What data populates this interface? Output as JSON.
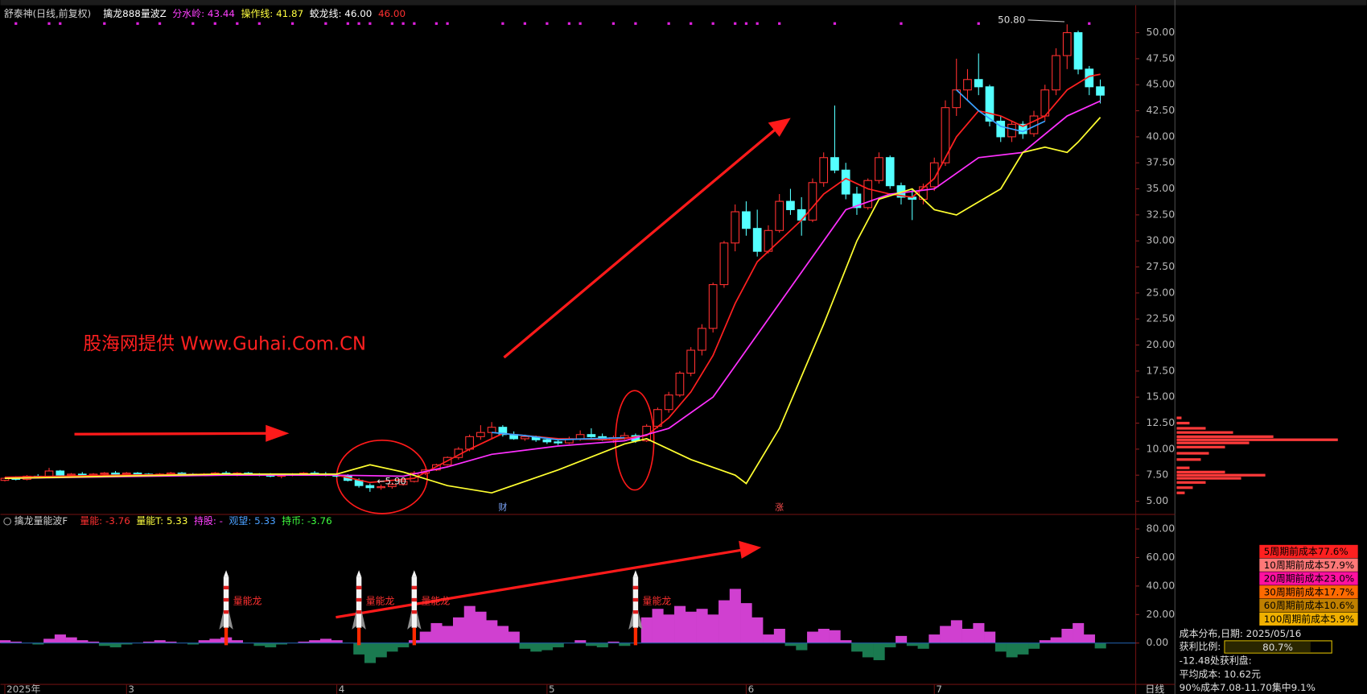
{
  "chart_data": [
    {
      "type": "candlestick",
      "header": [
        {
          "text": "舒泰神(日线,前复权)",
          "color": "#d0d0d0"
        },
        {
          "text": "擒龙888量波Z",
          "color": "#ffffff"
        },
        {
          "text": "分水岭: 43.44",
          "color": "#ff40ff"
        },
        {
          "text": "操作线: 41.87",
          "color": "#ffff40"
        },
        {
          "text": "蛟龙线: 46.00",
          "color": "#ffffff"
        },
        {
          "text": "46.00",
          "color": "#ff3030"
        }
      ],
      "watermark": "股海网提供 Www.Guhai.Com.CN",
      "up_color": "#ff3030",
      "down_color": "#54ffff",
      "xlim": [
        -0.4,
        102.2
      ],
      "xticks": [
        {
          "value": 0,
          "label": "2025年"
        },
        {
          "value": 11,
          "label": "3"
        },
        {
          "value": 30,
          "label": "4"
        },
        {
          "value": 49,
          "label": "5"
        },
        {
          "value": 67,
          "label": "6"
        },
        {
          "value": 84,
          "label": "7"
        }
      ],
      "ylim": [
        3.9,
        52.3
      ],
      "yticks": [
        {
          "value": 5,
          "label": "5.00"
        },
        {
          "value": 7.5,
          "label": "7.50"
        },
        {
          "value": 10,
          "label": "10.00"
        },
        {
          "value": 12.5,
          "label": "12.50"
        },
        {
          "value": 15,
          "label": "15.00"
        },
        {
          "value": 17.5,
          "label": "17.50"
        },
        {
          "value": 20,
          "label": "20.00"
        },
        {
          "value": 22.5,
          "label": "22.50"
        },
        {
          "value": 25,
          "label": "25.00"
        },
        {
          "value": 27.5,
          "label": "27.50"
        },
        {
          "value": 30,
          "label": "30.00"
        },
        {
          "value": 32.5,
          "label": "32.50"
        },
        {
          "value": 35,
          "label": "35.00"
        },
        {
          "value": 37.5,
          "label": "37.50"
        },
        {
          "value": 40,
          "label": "40.00"
        },
        {
          "value": 42.5,
          "label": "42.50"
        },
        {
          "value": 45,
          "label": "45.00"
        },
        {
          "value": 47.5,
          "label": "47.50"
        },
        {
          "value": 50,
          "label": "50.00"
        }
      ],
      "ohlc": [
        [
          7.0,
          7.3,
          6.9,
          7.2
        ],
        [
          7.2,
          7.4,
          7.0,
          7.1
        ],
        [
          7.1,
          7.5,
          7.0,
          7.4
        ],
        [
          7.4,
          7.6,
          7.2,
          7.3
        ],
        [
          7.3,
          8.2,
          7.2,
          7.9
        ],
        [
          7.9,
          8.0,
          7.4,
          7.5
        ],
        [
          7.5,
          7.7,
          7.3,
          7.6
        ],
        [
          7.6,
          7.8,
          7.4,
          7.5
        ],
        [
          7.5,
          7.7,
          7.3,
          7.6
        ],
        [
          7.6,
          7.8,
          7.4,
          7.7
        ],
        [
          7.7,
          7.9,
          7.5,
          7.6
        ],
        [
          7.6,
          7.8,
          7.4,
          7.7
        ],
        [
          7.7,
          7.8,
          7.5,
          7.6
        ],
        [
          7.6,
          7.7,
          7.4,
          7.5
        ],
        [
          7.5,
          7.7,
          7.4,
          7.6
        ],
        [
          7.6,
          7.8,
          7.5,
          7.7
        ],
        [
          7.7,
          7.8,
          7.5,
          7.6
        ],
        [
          7.6,
          7.7,
          7.4,
          7.5
        ],
        [
          7.5,
          7.7,
          7.4,
          7.6
        ],
        [
          7.6,
          7.8,
          7.5,
          7.7
        ],
        [
          7.7,
          7.9,
          7.5,
          7.6
        ],
        [
          7.6,
          7.8,
          7.4,
          7.7
        ],
        [
          7.7,
          7.8,
          7.5,
          7.6
        ],
        [
          7.6,
          7.7,
          7.4,
          7.5
        ],
        [
          7.5,
          7.7,
          7.3,
          7.4
        ],
        [
          7.4,
          7.6,
          7.2,
          7.5
        ],
        [
          7.5,
          7.7,
          7.4,
          7.6
        ],
        [
          7.6,
          7.8,
          7.5,
          7.7
        ],
        [
          7.7,
          7.9,
          7.5,
          7.6
        ],
        [
          7.6,
          7.8,
          7.4,
          7.5
        ],
        [
          7.5,
          7.7,
          7.3,
          7.4
        ],
        [
          7.4,
          7.6,
          6.9,
          7.0
        ],
        [
          7.0,
          7.2,
          6.3,
          6.5
        ],
        [
          6.5,
          6.7,
          5.9,
          6.3
        ],
        [
          6.3,
          6.6,
          6.1,
          6.4
        ],
        [
          6.4,
          6.8,
          6.2,
          6.6
        ],
        [
          6.6,
          7.0,
          6.5,
          6.9
        ],
        [
          6.9,
          7.9,
          6.8,
          7.7
        ],
        [
          7.7,
          8.1,
          7.5,
          8.0
        ],
        [
          8.0,
          8.6,
          7.9,
          8.5
        ],
        [
          8.5,
          9.3,
          8.4,
          9.2
        ],
        [
          9.2,
          10.2,
          9.0,
          10.0
        ],
        [
          10.0,
          11.4,
          9.8,
          11.2
        ],
        [
          11.2,
          12.3,
          10.9,
          11.6
        ],
        [
          11.6,
          12.6,
          11.0,
          12.1
        ],
        [
          12.1,
          12.3,
          11.2,
          11.4
        ],
        [
          11.4,
          11.7,
          10.9,
          11.0
        ],
        [
          11.0,
          11.4,
          10.8,
          11.2
        ],
        [
          11.2,
          11.3,
          10.7,
          10.9
        ],
        [
          10.9,
          11.1,
          10.5,
          10.7
        ],
        [
          10.7,
          11.0,
          10.4,
          10.6
        ],
        [
          10.6,
          11.2,
          10.5,
          11.0
        ],
        [
          11.0,
          11.8,
          10.8,
          11.4
        ],
        [
          11.4,
          12.0,
          11.1,
          11.2
        ],
        [
          11.2,
          11.5,
          10.8,
          10.9
        ],
        [
          10.9,
          11.3,
          10.6,
          11.1
        ],
        [
          11.1,
          11.6,
          10.9,
          11.3
        ],
        [
          11.3,
          11.5,
          10.6,
          10.8
        ],
        [
          10.8,
          12.4,
          10.7,
          12.2
        ],
        [
          12.2,
          14.0,
          12.0,
          13.8
        ],
        [
          13.8,
          15.5,
          13.5,
          15.2
        ],
        [
          15.2,
          17.5,
          15.0,
          17.3
        ],
        [
          17.3,
          19.8,
          17.0,
          19.5
        ],
        [
          19.5,
          22.0,
          19.0,
          21.6
        ],
        [
          21.6,
          26.0,
          21.2,
          25.8
        ],
        [
          25.8,
          30.0,
          25.5,
          29.8
        ],
        [
          29.8,
          33.5,
          29.0,
          32.8
        ],
        [
          32.8,
          33.8,
          30.5,
          31.2
        ],
        [
          31.2,
          33.0,
          28.5,
          29.0
        ],
        [
          29.0,
          31.5,
          28.8,
          31.0
        ],
        [
          31.0,
          34.5,
          30.8,
          33.8
        ],
        [
          33.8,
          35.0,
          32.5,
          33.0
        ],
        [
          33.0,
          34.2,
          30.5,
          32.0
        ],
        [
          32.0,
          36.0,
          31.8,
          35.6
        ],
        [
          35.6,
          38.5,
          35.2,
          38.0
        ],
        [
          38.0,
          43.0,
          36.5,
          36.8
        ],
        [
          36.8,
          37.5,
          34.0,
          34.5
        ],
        [
          34.5,
          35.2,
          32.5,
          33.2
        ],
        [
          33.2,
          36.0,
          33.0,
          35.8
        ],
        [
          35.8,
          38.5,
          35.5,
          38.0
        ],
        [
          38.0,
          38.2,
          35.0,
          35.3
        ],
        [
          35.3,
          35.6,
          33.5,
          34.2
        ],
        [
          34.2,
          35.0,
          32.0,
          34.0
        ],
        [
          34.0,
          35.5,
          33.5,
          35.2
        ],
        [
          35.2,
          38.0,
          34.8,
          37.5
        ],
        [
          37.5,
          43.5,
          37.2,
          42.8
        ],
        [
          42.8,
          47.5,
          42.0,
          44.5
        ],
        [
          44.5,
          46.5,
          43.5,
          45.5
        ],
        [
          45.5,
          48.0,
          44.0,
          44.8
        ],
        [
          44.8,
          45.0,
          41.0,
          41.5
        ],
        [
          41.5,
          42.0,
          39.5,
          40.0
        ],
        [
          40.0,
          41.5,
          39.5,
          41.2
        ],
        [
          41.2,
          41.5,
          39.8,
          40.3
        ],
        [
          40.3,
          42.5,
          40.0,
          42.0
        ],
        [
          42.0,
          45.0,
          41.5,
          44.5
        ],
        [
          44.5,
          48.5,
          44.0,
          47.8
        ],
        [
          47.8,
          50.8,
          46.5,
          50.0
        ],
        [
          50.0,
          50.2,
          46.0,
          46.5
        ],
        [
          46.5,
          46.8,
          44.0,
          44.8
        ],
        [
          44.8,
          45.5,
          43.2,
          44.0
        ]
      ],
      "series": [
        {
          "color": "#ff2020",
          "x": [
            0,
            10,
            20,
            30,
            33,
            37,
            42,
            45,
            50,
            55,
            58,
            60,
            62,
            64,
            66,
            68,
            70,
            72,
            74,
            76,
            78,
            80,
            82,
            84,
            86,
            88,
            90,
            92,
            94,
            96,
            98,
            99
          ],
          "values": [
            7.3,
            7.5,
            7.6,
            7.5,
            6.8,
            7.2,
            10,
            11.5,
            11,
            10.9,
            11.3,
            13,
            15.5,
            19,
            24,
            28,
            30,
            32,
            34.5,
            36,
            35,
            34.5,
            34.2,
            36,
            40,
            42.5,
            42,
            41,
            42,
            44.5,
            45.8,
            46.0
          ]
        },
        {
          "color": "#ff30ff",
          "x": [
            0,
            20,
            30,
            36,
            40,
            44,
            50,
            56,
            60,
            64,
            68,
            72,
            76,
            80,
            84,
            88,
            92,
            96,
            99
          ],
          "values": [
            7.2,
            7.5,
            7.5,
            7.4,
            8.3,
            9.5,
            10.3,
            10.8,
            12,
            15,
            21,
            27,
            33,
            34.5,
            35,
            38,
            38.5,
            42,
            43.44
          ]
        },
        {
          "color": "#ffff30",
          "x": [
            0,
            20,
            30,
            33,
            36,
            40,
            44,
            50,
            56,
            58,
            62,
            66,
            67,
            70,
            74,
            77,
            79,
            82,
            84,
            86,
            90,
            92,
            94,
            96,
            97,
            99
          ],
          "values": [
            7.2,
            7.6,
            7.6,
            8.5,
            7.8,
            6.5,
            5.8,
            8,
            10.5,
            11,
            9,
            7.5,
            6.7,
            12,
            22,
            30,
            34,
            35,
            33,
            32.5,
            35,
            38.5,
            39,
            38.5,
            39.5,
            41.87
          ]
        },
        {
          "color": "#3aa0ff",
          "x": [
            44,
            47,
            50,
            53,
            56
          ],
          "values": [
            11.6,
            11.3,
            10.9,
            11.0,
            11.1
          ]
        },
        {
          "color": "#3aa0ff",
          "x": [
            86,
            88,
            90,
            92,
            94
          ],
          "values": [
            44.5,
            42.5,
            41.0,
            40.5,
            41.5
          ]
        }
      ],
      "extremes": [
        {
          "x": 96,
          "value": 50.8,
          "label": "50.80"
        },
        {
          "x": 33,
          "value": 5.9,
          "label": "←5.90"
        }
      ],
      "markers": [
        {
          "x": 45,
          "label": "财",
          "color": "#7fa8ff"
        },
        {
          "x": 70,
          "label": "涨",
          "color": "#ff5050"
        }
      ],
      "signals": [
        1,
        4,
        5,
        9,
        12,
        14,
        17,
        19,
        21,
        23,
        26,
        29,
        31,
        32,
        33,
        35,
        36,
        37,
        39,
        40,
        45,
        47,
        49,
        51,
        52,
        55,
        57,
        60,
        62,
        64,
        66,
        67,
        68,
        70,
        75,
        81,
        88,
        98
      ],
      "signal_color": "#e020e0"
    },
    {
      "type": "area",
      "header": [
        {
          "text": "擒龙量能波F",
          "color": "#d0d0d0"
        },
        {
          "text": "量能: -3.76",
          "color": "#ff3030"
        },
        {
          "text": "量能T: 5.33",
          "color": "#ffff40"
        },
        {
          "text": "持股: -",
          "color": "#ff40ff"
        },
        {
          "text": "观望: 5.33",
          "color": "#4aa0ff"
        },
        {
          "text": "持币: -3.76",
          "color": "#40ff40"
        }
      ],
      "positive_color": "#d040d0",
      "negative_color": "#1a7a50",
      "ylim": [
        -29,
        89
      ],
      "yticks": [
        {
          "value": 0,
          "label": "0.00"
        },
        {
          "value": 20,
          "label": "20.00"
        },
        {
          "value": 40,
          "label": "40.00"
        },
        {
          "value": 60,
          "label": "60.00"
        },
        {
          "value": 80,
          "label": "80.00"
        }
      ],
      "values": [
        2,
        1,
        0,
        -1,
        3,
        6,
        4,
        2,
        1,
        -2,
        -3,
        -1,
        0,
        1,
        2,
        1,
        0,
        -1,
        2,
        3,
        4,
        2,
        0,
        -2,
        -3,
        -1,
        0,
        1,
        2,
        3,
        2,
        0,
        -8,
        -14,
        -10,
        -6,
        -3,
        2,
        8,
        14,
        12,
        18,
        26,
        22,
        16,
        12,
        8,
        -4,
        -6,
        -5,
        -3,
        0,
        2,
        -2,
        -3,
        1,
        -2,
        0,
        18,
        24,
        20,
        26,
        22,
        24,
        20,
        30,
        38,
        28,
        18,
        6,
        10,
        -2,
        -5,
        8,
        10,
        9,
        2,
        -6,
        -10,
        -12,
        -3,
        5,
        -2,
        -4,
        6,
        12,
        16,
        10,
        14,
        8,
        -6,
        -10,
        -8,
        -4,
        2,
        4,
        10,
        14,
        6,
        -3.76
      ],
      "annotations": [
        {
          "x": 20,
          "label": "量能龙"
        },
        {
          "x": 32,
          "label": "量能龙"
        },
        {
          "x": 37,
          "label": "量能龙"
        },
        {
          "x": 57,
          "label": "量能龙"
        }
      ]
    },
    {
      "type": "profile",
      "color": "#ff3a3a",
      "ylim": [
        3.9,
        52.3
      ],
      "xlim": [
        0,
        100
      ],
      "prices": [
        5.8,
        6.3,
        6.8,
        7.2,
        7.5,
        7.8,
        8.2,
        9,
        9.6,
        10.2,
        10.6,
        10.9,
        11.2,
        11.6,
        12.0,
        12.5,
        13
      ],
      "values": [
        5,
        10,
        18,
        40,
        55,
        30,
        8,
        15,
        20,
        30,
        45,
        100,
        60,
        35,
        18,
        8,
        3
      ],
      "legend": [
        {
          "text": "5周期前成本77.6%",
          "color": "#ff2020"
        },
        {
          "text": "10周期前成本57.9%",
          "color": "#ff7878"
        },
        {
          "text": "20周期前成本23.0%",
          "color": "#ff10a0"
        },
        {
          "text": "30周期前成本17.7%",
          "color": "#ff6a00"
        },
        {
          "text": "60周期前成本10.6%",
          "color": "#c08000"
        },
        {
          "text": "100周期前成本5.9%",
          "color": "#f0b000"
        }
      ],
      "date_label": "成本分布,日期: 2025/05/16",
      "profit_label": "获利比例:",
      "profit_ratio": 80.7,
      "profit_ratio_label": "80.7%",
      "profit_at": "-12.48处获利盘:",
      "avg_cost": "平均成本: 10.62元",
      "concentration": "90%成本7.08-11.70集中9.1%",
      "tab": "日线"
    }
  ]
}
